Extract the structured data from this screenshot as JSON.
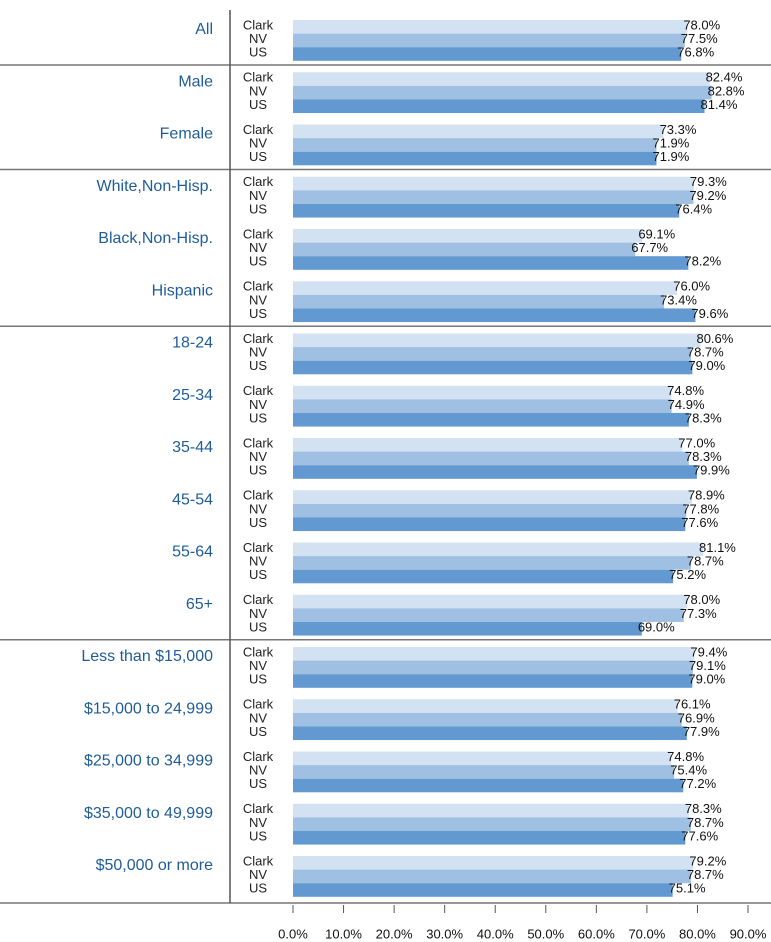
{
  "chart_data": {
    "type": "bar",
    "orientation": "horizontal",
    "categories": [
      "All",
      "Male",
      "Female",
      "White,Non-Hisp.",
      "Black,Non-Hisp.",
      "Hispanic",
      "18-24",
      "25-34",
      "35-44",
      "45-54",
      "55-64",
      "65+",
      "Less than $15,000",
      "$15,000 to 24,999",
      "$25,000 to 34,999",
      "$35,000 to 49,999",
      "$50,000 or more"
    ],
    "series": [
      {
        "name": "Clark",
        "color": "#d3e2f2",
        "values": [
          78.0,
          82.4,
          73.3,
          79.3,
          69.1,
          76.0,
          80.6,
          74.8,
          77.0,
          78.9,
          81.1,
          78.0,
          79.4,
          76.1,
          74.8,
          78.3,
          79.2
        ],
        "value_labels": [
          "78.0%",
          "82.4%",
          "73.3%",
          "79.3%",
          "69.1%",
          "76.0%",
          "80.6%",
          "74.8%",
          "77.0%",
          "78.9%",
          "81.1%",
          "78.0%",
          "79.4%",
          "76.1%",
          "74.8%",
          "78.3%",
          "79.2%"
        ]
      },
      {
        "name": "NV",
        "color": "#9fc0e2",
        "values": [
          77.5,
          82.8,
          71.9,
          79.2,
          67.7,
          73.4,
          78.7,
          74.9,
          78.3,
          77.8,
          78.7,
          77.3,
          79.1,
          76.9,
          75.4,
          78.7,
          78.7
        ],
        "value_labels": [
          "77.5%",
          "82.8%",
          "71.9%",
          "79.2%",
          "67.7%",
          "73.4%",
          "78.7%",
          "74.9%",
          "78.3%",
          "77.8%",
          "78.7%",
          "77.3%",
          "79.1%",
          "76.9%",
          "75.4%",
          "78.7%",
          "78.7%"
        ]
      },
      {
        "name": "US",
        "color": "#6199d0",
        "values": [
          76.8,
          81.4,
          71.9,
          76.4,
          78.2,
          79.6,
          79.0,
          78.3,
          79.9,
          77.6,
          75.2,
          69.0,
          79.0,
          77.9,
          77.2,
          77.6,
          75.1
        ],
        "value_labels": [
          "76.8%",
          "81.4%",
          "71.9%",
          "76.4%",
          "78.2%",
          "79.6%",
          "79.0%",
          "78.3%",
          "79.9%",
          "77.6%",
          "75.2%",
          "69.0%",
          "79.0%",
          "77.9%",
          "77.2%",
          "77.6%",
          "75.1%"
        ]
      }
    ],
    "xlim": [
      0,
      90
    ],
    "xticks": [
      {
        "value": 0,
        "label": "0.0%"
      },
      {
        "value": 10,
        "label": "10.0%"
      },
      {
        "value": 20,
        "label": "20.0%"
      },
      {
        "value": 30,
        "label": "30.0%"
      },
      {
        "value": 40,
        "label": "40.0%"
      },
      {
        "value": 50,
        "label": "50.0%"
      },
      {
        "value": 60,
        "label": "60.0%"
      },
      {
        "value": 70,
        "label": "70.0%"
      },
      {
        "value": 80,
        "label": "80.0%"
      },
      {
        "value": 90,
        "label": "90.0%"
      }
    ]
  }
}
